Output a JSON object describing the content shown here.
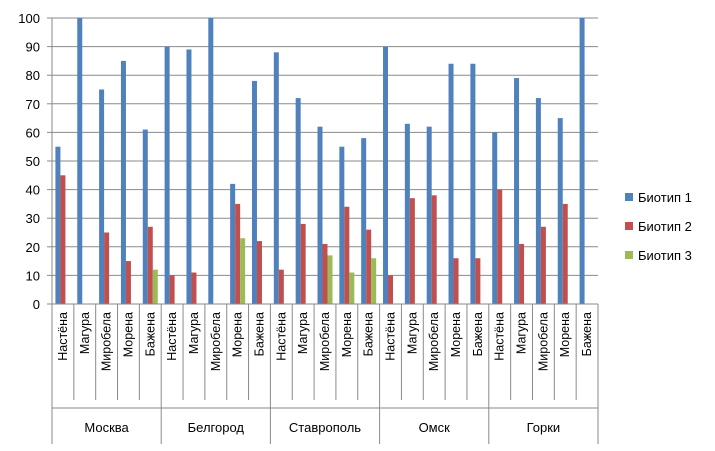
{
  "chart_data": {
    "type": "bar",
    "ylim": [
      0,
      100
    ],
    "yticks": [
      0,
      10,
      20,
      30,
      40,
      50,
      60,
      70,
      80,
      90,
      100
    ],
    "grid": true,
    "legend_position": "right",
    "groups": [
      "Москва",
      "Белгород",
      "Ставрополь",
      "Омск",
      "Горки"
    ],
    "categories": [
      "Настёна",
      "Магура",
      "Миробела",
      "Морена",
      "Бажена"
    ],
    "series": [
      {
        "name": "Биотип 1",
        "color": "#4F81BD",
        "values": [
          [
            55,
            100,
            75,
            85,
            61
          ],
          [
            90,
            89,
            100,
            42,
            78
          ],
          [
            88,
            72,
            62,
            55,
            58
          ],
          [
            90,
            63,
            62,
            84,
            84
          ],
          [
            60,
            79,
            72,
            65,
            100
          ]
        ]
      },
      {
        "name": "Биотип 2",
        "color": "#C0504D",
        "values": [
          [
            45,
            0,
            25,
            15,
            27
          ],
          [
            10,
            11,
            0,
            35,
            22
          ],
          [
            12,
            28,
            21,
            34,
            26
          ],
          [
            10,
            37,
            38,
            16,
            16
          ],
          [
            40,
            21,
            27,
            35,
            0
          ]
        ]
      },
      {
        "name": "Биотип 3",
        "color": "#9BBB59",
        "values": [
          [
            0,
            0,
            0,
            0,
            12
          ],
          [
            0,
            0,
            0,
            23,
            0
          ],
          [
            0,
            0,
            17,
            11,
            16
          ],
          [
            0,
            0,
            0,
            0,
            0
          ],
          [
            0,
            0,
            0,
            0,
            0
          ]
        ]
      }
    ]
  }
}
